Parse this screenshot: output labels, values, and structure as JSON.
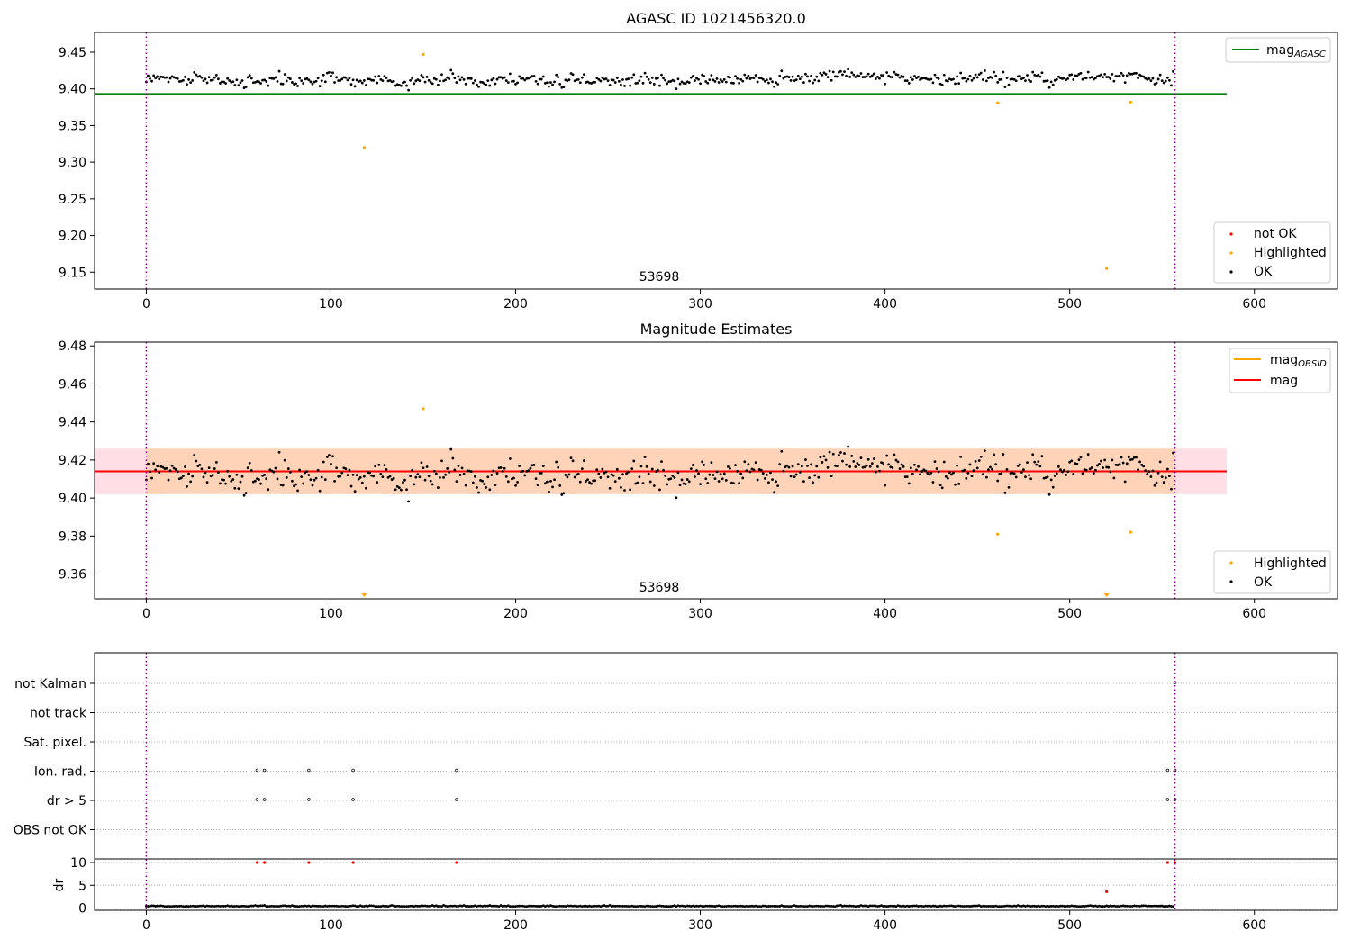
{
  "chart_data": [
    {
      "type": "scatter",
      "title": "AGASC ID 1021456320.0",
      "xlabel": "",
      "ylabel": "",
      "xlim": [
        -28,
        645
      ],
      "ylim": [
        9.127,
        9.477
      ],
      "x_ticks": [
        0,
        100,
        200,
        300,
        400,
        500,
        600
      ],
      "y_ticks": [
        9.15,
        9.2,
        9.25,
        9.3,
        9.35,
        9.4,
        9.45
      ],
      "y_tick_labels": [
        "9.15",
        "9.20",
        "9.25",
        "9.30",
        "9.35",
        "9.40",
        "9.45"
      ],
      "annotation": "53698",
      "vlines": [
        0,
        557
      ],
      "hline": {
        "name": "mag_AGASC",
        "value": 9.393,
        "x_range": [
          -28,
          585
        ],
        "color": "#008000"
      },
      "legend_lines": [
        {
          "name": "mag",
          "sub": "AGASC",
          "color": "#008000"
        }
      ],
      "legend_markers": [
        {
          "name": "not OK",
          "color": "#ff0000"
        },
        {
          "name": "Highlighted",
          "color": "#ffa500"
        },
        {
          "name": "OK",
          "color": "#000000"
        }
      ],
      "ok_series": {
        "seed": 7,
        "n": 557,
        "base": 9.413,
        "noise": 0.009
      },
      "highlighted": [
        [
          118,
          9.32
        ],
        [
          150,
          9.447
        ],
        [
          461,
          9.381
        ],
        [
          520,
          9.155
        ],
        [
          533,
          9.382
        ]
      ],
      "grid": false
    },
    {
      "type": "scatter",
      "title": "Magnitude Estimates",
      "xlabel": "",
      "ylabel": "",
      "xlim": [
        -28,
        645
      ],
      "ylim": [
        9.347,
        9.482
      ],
      "x_ticks": [
        0,
        100,
        200,
        300,
        400,
        500,
        600
      ],
      "y_ticks": [
        9.36,
        9.38,
        9.4,
        9.42,
        9.44,
        9.46,
        9.48
      ],
      "y_tick_labels": [
        "9.36",
        "9.38",
        "9.40",
        "9.42",
        "9.44",
        "9.46",
        "9.48"
      ],
      "annotation": "53698",
      "vlines": [
        0,
        557
      ],
      "mag": 9.414,
      "mag_band": [
        9.402,
        9.426
      ],
      "band_x_range": [
        -28,
        585
      ],
      "obs_band_x_range": [
        0,
        557
      ],
      "legend_lines": [
        {
          "name": "mag",
          "sub": "OBSID",
          "color": "#ffa500"
        },
        {
          "name": "mag",
          "sub": "",
          "color": "#ff0000"
        }
      ],
      "legend_markers": [
        {
          "name": "Highlighted",
          "color": "#ffa500"
        },
        {
          "name": "OK",
          "color": "#000000"
        }
      ],
      "ok_series": {
        "seed": 7,
        "n": 557,
        "base": 9.413,
        "noise": 0.009
      },
      "highlighted": [
        [
          150,
          9.447
        ],
        [
          461,
          9.381
        ],
        [
          533,
          9.382
        ]
      ],
      "offscale_markers": [
        118,
        520
      ],
      "grid": false
    },
    {
      "type": "scatter",
      "title": "",
      "xlabel": "",
      "ylabel": "",
      "xlim": [
        -28,
        645
      ],
      "x_ticks": [
        0,
        100,
        200,
        300,
        400,
        500,
        600
      ],
      "flag_labels": [
        "not Kalman",
        "not track",
        "Sat. pixel.",
        "Ion. rad.",
        "dr > 5",
        "OBS not OK"
      ],
      "flag_points": {
        "Ion. rad.": [
          60,
          64,
          88,
          112,
          168,
          553,
          557
        ],
        "dr > 5": [
          60,
          64,
          88,
          112,
          168,
          553,
          557
        ],
        "not Kalman": [
          557
        ]
      },
      "vlines": [
        0,
        557
      ],
      "grid": true
    },
    {
      "type": "scatter",
      "title": "",
      "xlabel": "",
      "ylabel": "dr",
      "xlim": [
        -28,
        645
      ],
      "ylim": [
        -0.5,
        10.8
      ],
      "x_ticks": [
        0,
        100,
        200,
        300,
        400,
        500,
        600
      ],
      "y_ticks": [
        0,
        5,
        10
      ],
      "y_tick_labels": [
        "0",
        "5",
        "10"
      ],
      "dr_series": {
        "seed": 3,
        "n": 557,
        "base": 0.35,
        "noise": 0.2
      },
      "red_points": [
        [
          60,
          10
        ],
        [
          64,
          10
        ],
        [
          88,
          10
        ],
        [
          112,
          10
        ],
        [
          168,
          10
        ],
        [
          553,
          10
        ],
        [
          557,
          10
        ],
        [
          520,
          3.6
        ]
      ],
      "vlines": [
        0,
        557
      ],
      "grid": true
    }
  ]
}
